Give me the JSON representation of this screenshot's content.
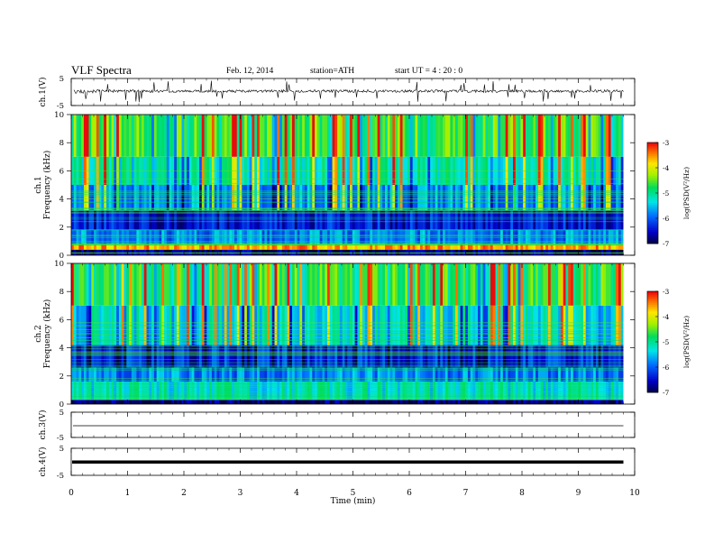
{
  "header": {
    "title": "VLF  Spectra",
    "date": "Feb. 12, 2014",
    "station": "station=ATH",
    "start": "start  UT  =   4  : 20 : 0"
  },
  "chart_data": [
    {
      "type": "line",
      "panel": "ch1-waveform",
      "ylabel": "ch.1(V)",
      "ylim": [
        -5,
        5
      ],
      "yticks": [
        "5",
        "-5"
      ],
      "description_of_signal": "noisy waveform near 0 V with frequent spikes",
      "x": [
        0,
        1,
        2,
        3,
        4,
        5,
        6,
        7,
        8,
        9,
        9.8
      ],
      "values": [
        1.2,
        0.5,
        0.4,
        0.2,
        0.3,
        0.2,
        0.1,
        0.4,
        0.1,
        0.2,
        0.2
      ]
    },
    {
      "type": "heatmap",
      "panel": "ch1-spectrogram",
      "ylabel": "ch.1\nFrequency  (kHz)",
      "ylim": [
        0,
        10
      ],
      "yticks": [
        "0",
        "2",
        "4",
        "6",
        "8",
        "10"
      ],
      "xlim": [
        0,
        10
      ],
      "colorbar": {
        "label": "log(PSD(V²/Hz)",
        "range": [
          -7,
          -3
        ],
        "ticks": [
          "-3",
          "-4",
          "-5",
          "-6",
          "-7"
        ]
      },
      "bands_logpsd": [
        {
          "f": [
            0.0,
            0.4
          ],
          "value": -6.8
        },
        {
          "f": [
            0.4,
            0.8
          ],
          "value": -3.6
        },
        {
          "f": [
            0.8,
            1.8
          ],
          "value": -5.8
        },
        {
          "f": [
            1.8,
            3.2
          ],
          "value": -6.4
        },
        {
          "f": [
            3.2,
            5.0
          ],
          "value": -5.7
        },
        {
          "f": [
            5.0,
            7.0
          ],
          "value": -5.1
        },
        {
          "f": [
            7.0,
            10.0
          ],
          "value": -4.6
        }
      ]
    },
    {
      "type": "heatmap",
      "panel": "ch2-spectrogram",
      "ylabel": "ch.2\nFrequency  (kHz)",
      "ylim": [
        0,
        10
      ],
      "yticks": [
        "0",
        "2",
        "4",
        "6",
        "8",
        "10"
      ],
      "xlim": [
        0,
        10
      ],
      "colorbar": {
        "label": "log(PSD(V²/Hz)",
        "range": [
          -7,
          -3
        ],
        "ticks": [
          "-3",
          "-4",
          "-5",
          "-6",
          "-7"
        ]
      },
      "bands_logpsd": [
        {
          "f": [
            0.0,
            0.3
          ],
          "value": -6.9
        },
        {
          "f": [
            0.3,
            1.6
          ],
          "value": -5.2
        },
        {
          "f": [
            1.6,
            2.6
          ],
          "value": -5.8
        },
        {
          "f": [
            2.6,
            4.2
          ],
          "value": -6.3
        },
        {
          "f": [
            4.2,
            7.0
          ],
          "value": -5.3
        },
        {
          "f": [
            7.0,
            10.0
          ],
          "value": -4.7
        }
      ]
    },
    {
      "type": "line",
      "panel": "ch3-waveform",
      "ylabel": "ch.3(V)",
      "ylim": [
        -5,
        5
      ],
      "yticks": [
        "5",
        "-5"
      ],
      "x": [
        0,
        9.8
      ],
      "values": [
        0,
        0
      ]
    },
    {
      "type": "line",
      "panel": "ch4-waveform",
      "ylabel": "ch.4(V)",
      "ylim": [
        -5,
        5
      ],
      "yticks": [
        "5",
        "-5"
      ],
      "x": [
        0,
        9.8
      ],
      "values": [
        0,
        0
      ]
    }
  ],
  "xaxis": {
    "label": "Time  (min)",
    "ticks": [
      "0",
      "1",
      "2",
      "3",
      "4",
      "5",
      "6",
      "7",
      "8",
      "9",
      "10"
    ],
    "xlim": [
      0,
      10
    ]
  }
}
